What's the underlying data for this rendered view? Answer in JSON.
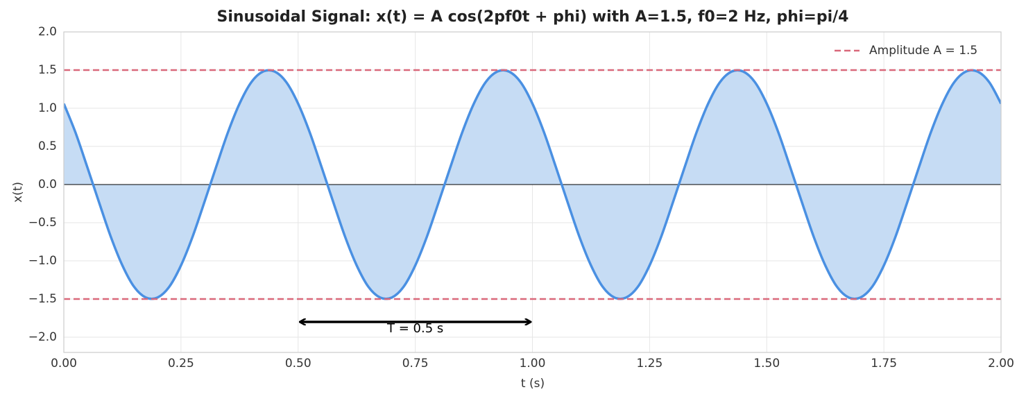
{
  "chart_data": {
    "type": "line",
    "title": "Sinusoidal Signal: x(t) = A cos(2pf0t + phi) with A=1.5, f0=2 Hz, phi=pi/4",
    "x_label": "t (s)",
    "y_label": "x(t)",
    "x": [
      0,
      0.025,
      0.05,
      0.075,
      0.1,
      0.125,
      0.15,
      0.175,
      0.2,
      0.225,
      0.25,
      0.275,
      0.3,
      0.325,
      0.35,
      0.375,
      0.4,
      0.425,
      0.45,
      0.475,
      0.5,
      0.525,
      0.55,
      0.575,
      0.6,
      0.625,
      0.65,
      0.675,
      0.7,
      0.725,
      0.75,
      0.775,
      0.8,
      0.825,
      0.85,
      0.875,
      0.9,
      0.925,
      0.95,
      0.975,
      1,
      1.025,
      1.05,
      1.075,
      1.1,
      1.125,
      1.15,
      1.175,
      1.2,
      1.225,
      1.25,
      1.275,
      1.3,
      1.325,
      1.35,
      1.375,
      1.4,
      1.425,
      1.45,
      1.475,
      1.5,
      1.525,
      1.55,
      1.575,
      1.6,
      1.625,
      1.65,
      1.675,
      1.7,
      1.725,
      1.75,
      1.775,
      1.8,
      1.825,
      1.85,
      1.875,
      1.9,
      1.925,
      1.95,
      1.975,
      2
    ],
    "series": [
      {
        "color": "#4a90e2",
        "fill": "#c6dcf4",
        "values": [
          1.06,
          0.68,
          0.23,
          -0.23,
          -0.68,
          -1.06,
          -1.34,
          -1.48,
          -1.48,
          -1.34,
          -1.06,
          -0.68,
          -0.23,
          0.23,
          0.68,
          1.06,
          1.34,
          1.48,
          1.48,
          1.34,
          1.06,
          0.68,
          0.23,
          -0.23,
          -0.68,
          -1.06,
          -1.34,
          -1.48,
          -1.48,
          -1.34,
          -1.06,
          -0.68,
          -0.23,
          0.23,
          0.68,
          1.06,
          1.34,
          1.48,
          1.48,
          1.34,
          1.06,
          0.68,
          0.23,
          -0.23,
          -0.68,
          -1.06,
          -1.34,
          -1.48,
          -1.48,
          -1.34,
          -1.06,
          -0.68,
          -0.23,
          0.23,
          0.68,
          1.06,
          1.34,
          1.48,
          1.48,
          1.34,
          1.06,
          0.68,
          0.23,
          -0.23,
          -0.68,
          -1.06,
          -1.34,
          -1.48,
          -1.48,
          -1.34,
          -1.06,
          -0.68,
          -0.23,
          0.23,
          0.68,
          1.06,
          1.34,
          1.48,
          1.48,
          1.34,
          1.06
        ]
      }
    ],
    "reference_lines": {
      "name": "Amplitude A = 1.5",
      "color": "#d9687a",
      "values": [
        1.5,
        -1.5
      ]
    },
    "annotation": {
      "text": "T = 0.5 s",
      "x_start": 0.5,
      "x_end": 1.0,
      "y": -1.8
    },
    "xlim": [
      0,
      2
    ],
    "ylim": [
      -2.2,
      2.0
    ],
    "xticks": [
      {
        "value": 0,
        "label": "0.00"
      },
      {
        "value": 0.25,
        "label": "0.25"
      },
      {
        "value": 0.5,
        "label": "0.50"
      },
      {
        "value": 0.75,
        "label": "0.75"
      },
      {
        "value": 1,
        "label": "1.00"
      },
      {
        "value": 1.25,
        "label": "1.25"
      },
      {
        "value": 1.5,
        "label": "1.50"
      },
      {
        "value": 1.75,
        "label": "1.75"
      },
      {
        "value": 2,
        "label": "2.00"
      }
    ],
    "yticks": [
      {
        "value": -2,
        "label": "−2.0"
      },
      {
        "value": -1.5,
        "label": "−1.5"
      },
      {
        "value": -1,
        "label": "−1.0"
      },
      {
        "value": -0.5,
        "label": "−0.5"
      },
      {
        "value": 0,
        "label": "0.0"
      },
      {
        "value": 0.5,
        "label": "0.5"
      },
      {
        "value": 1,
        "label": "1.0"
      },
      {
        "value": 1.5,
        "label": "1.5"
      },
      {
        "value": 2,
        "label": "2.0"
      }
    ],
    "grid": true,
    "legend": "upper right"
  }
}
